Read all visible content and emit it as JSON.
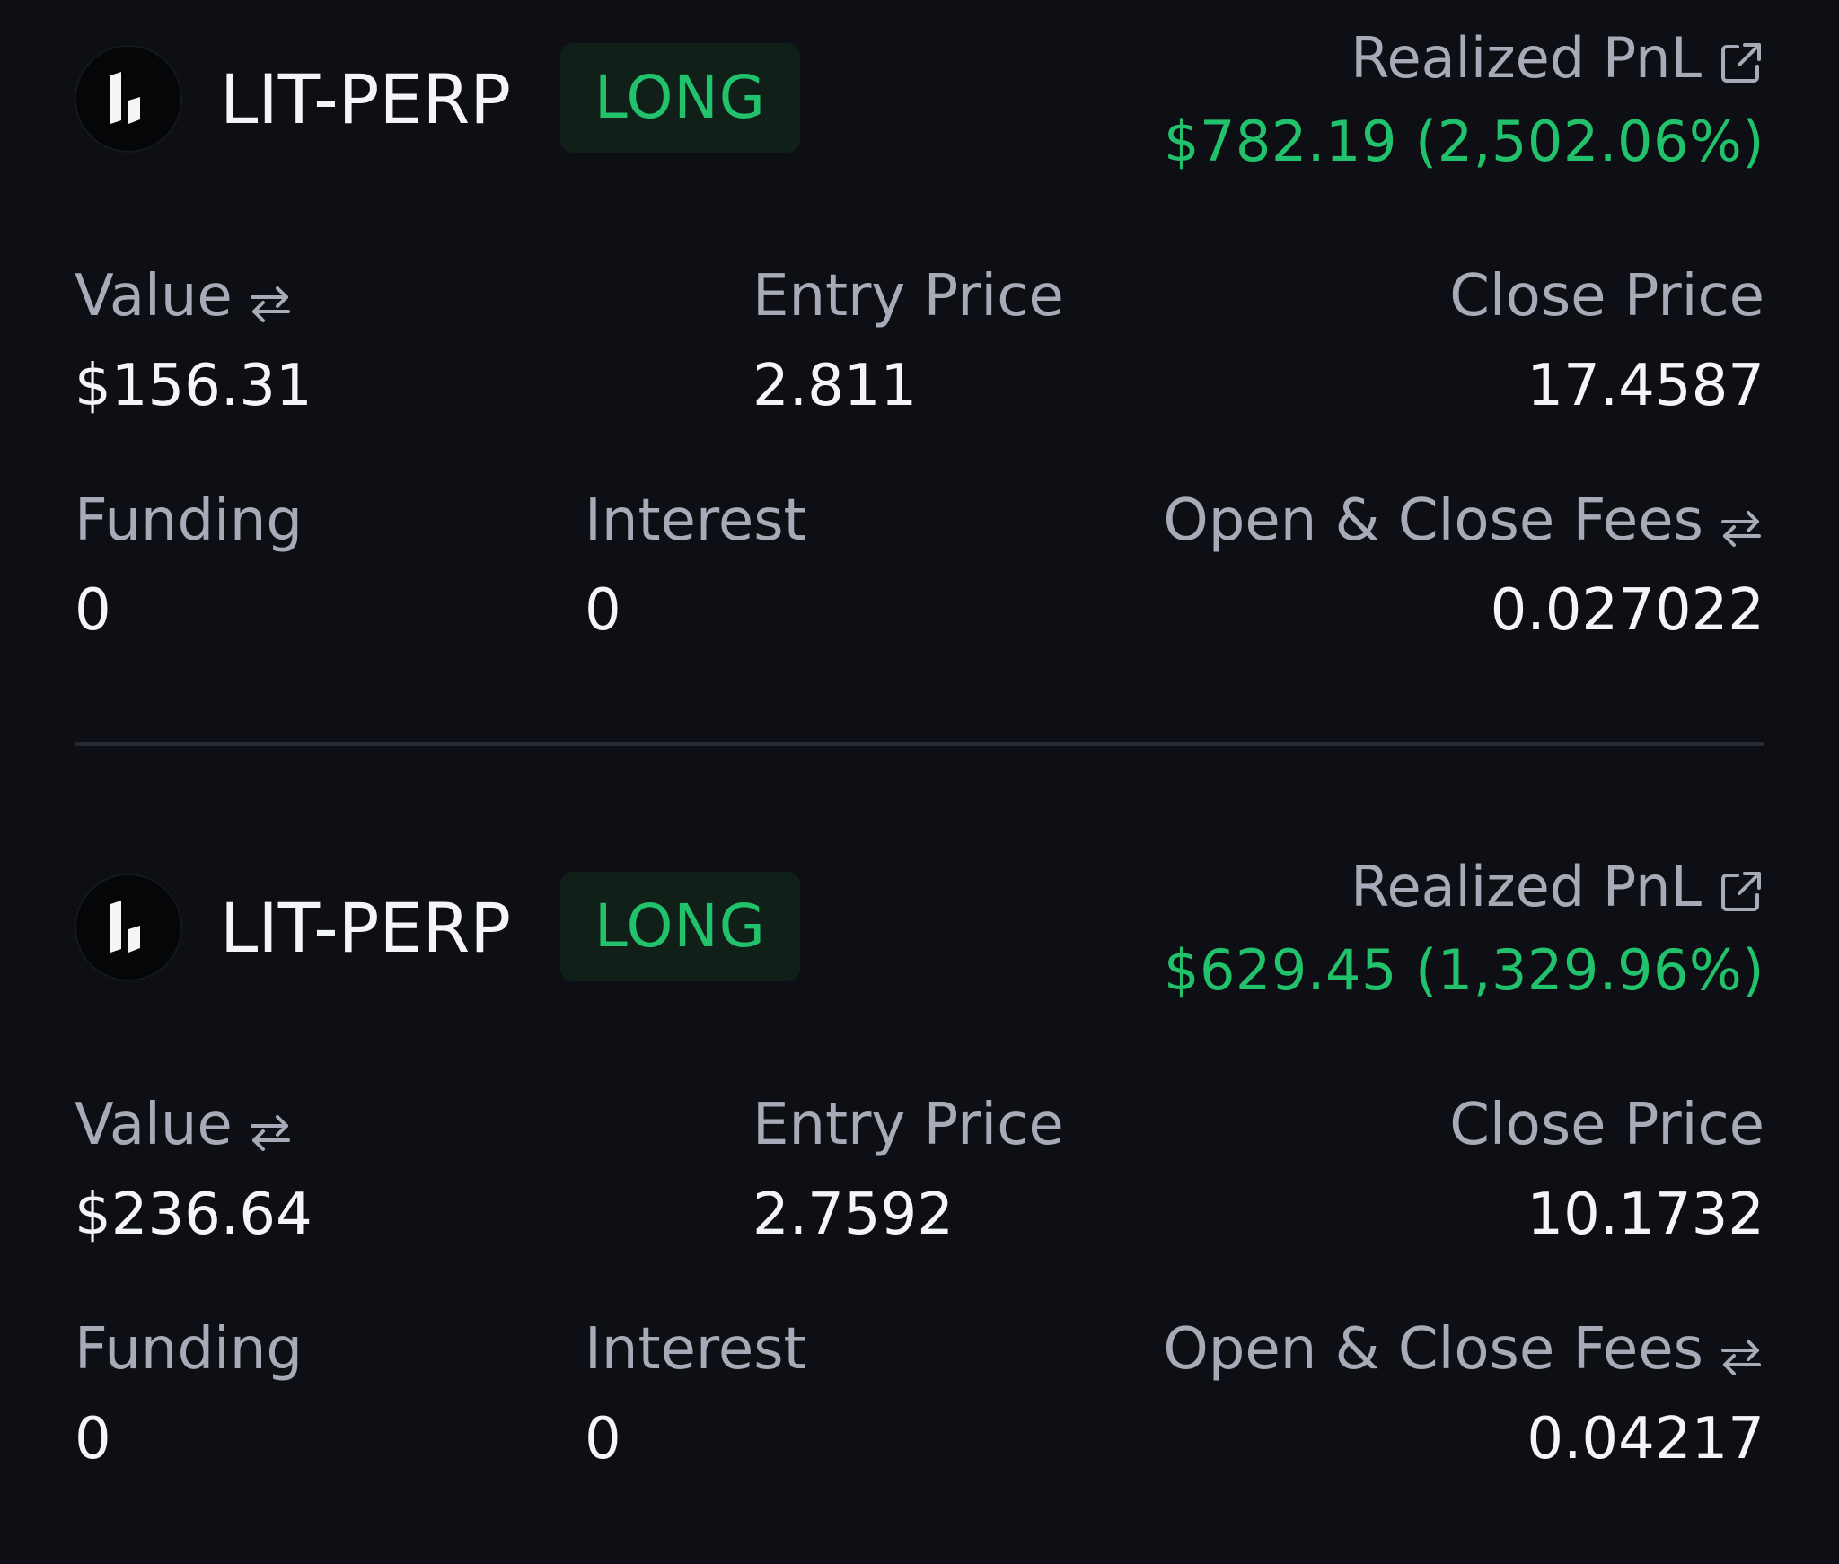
{
  "positions": [
    {
      "symbol": "LIT-PERP",
      "side": "LONG",
      "realized_pnl_label": "Realized PnL",
      "realized_pnl_value": "$782.19",
      "realized_pnl_percent": "(2,502.06%)",
      "value_label": "Value",
      "value": "$156.31",
      "entry_price_label": "Entry Price",
      "entry_price": "2.811",
      "close_price_label": "Close Price",
      "close_price": "17.4587",
      "funding_label": "Funding",
      "funding": "0",
      "interest_label": "Interest",
      "interest": "0",
      "fees_label": "Open & Close Fees",
      "fees": "0.027022"
    },
    {
      "symbol": "LIT-PERP",
      "side": "LONG",
      "realized_pnl_label": "Realized PnL",
      "realized_pnl_value": "$629.45",
      "realized_pnl_percent": "(1,329.96%)",
      "value_label": "Value",
      "value": "$236.64",
      "entry_price_label": "Entry Price",
      "entry_price": "2.7592",
      "close_price_label": "Close Price",
      "close_price": "10.1732",
      "funding_label": "Funding",
      "funding": "0",
      "interest_label": "Interest",
      "interest": "0",
      "fees_label": "Open & Close Fees",
      "fees": "0.04217"
    }
  ],
  "icons": {
    "logo": "lighter-logo-icon",
    "external_link": "external-link-icon",
    "swap": "swap-arrows-icon"
  },
  "colors": {
    "background": "#0d0f14",
    "positive": "#22c16b",
    "badge_background": "#102019",
    "muted_text": "#a7abb8",
    "primary_text": "#f3f5f8",
    "divider": "#262933"
  }
}
